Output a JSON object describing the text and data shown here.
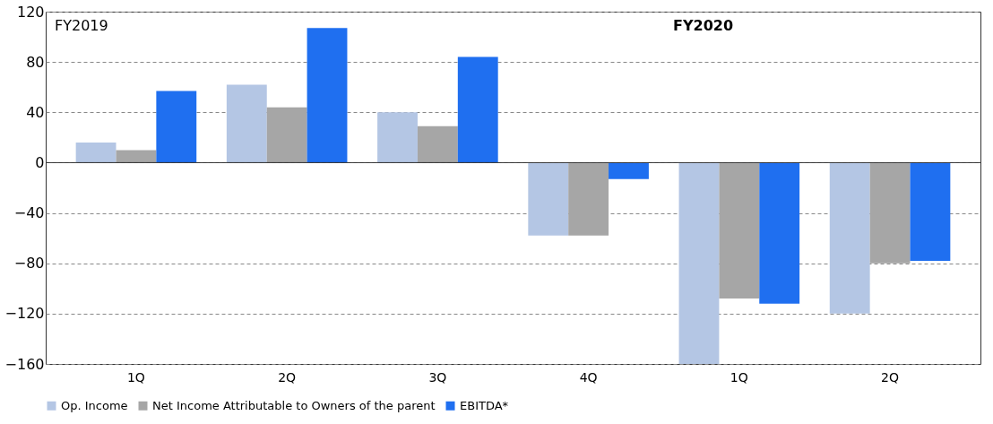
{
  "chart_data": {
    "type": "bar",
    "categories": [
      "1Q",
      "2Q",
      "3Q",
      "4Q",
      "1Q",
      "2Q"
    ],
    "series": [
      {
        "name": "Op. Income",
        "color": "#b4c6e4",
        "values": [
          16,
          62,
          40,
          -58,
          -160,
          -120
        ]
      },
      {
        "name": "Net Income Attributable to Owners of the parent",
        "color": "#a6a6a6",
        "values": [
          10,
          44,
          29,
          -58,
          -108,
          -80
        ]
      },
      {
        "name": "EBITDA*",
        "color": "#1f6ff0",
        "values": [
          57,
          107,
          84,
          -13,
          -112,
          -78
        ]
      }
    ],
    "ylim": [
      -160,
      120
    ],
    "yticks": [
      -160,
      -120,
      -80,
      -40,
      0,
      40,
      80,
      120
    ],
    "grid": "y",
    "legend": "bottom",
    "annotations": [
      "FY2019",
      "FY2020"
    ]
  }
}
